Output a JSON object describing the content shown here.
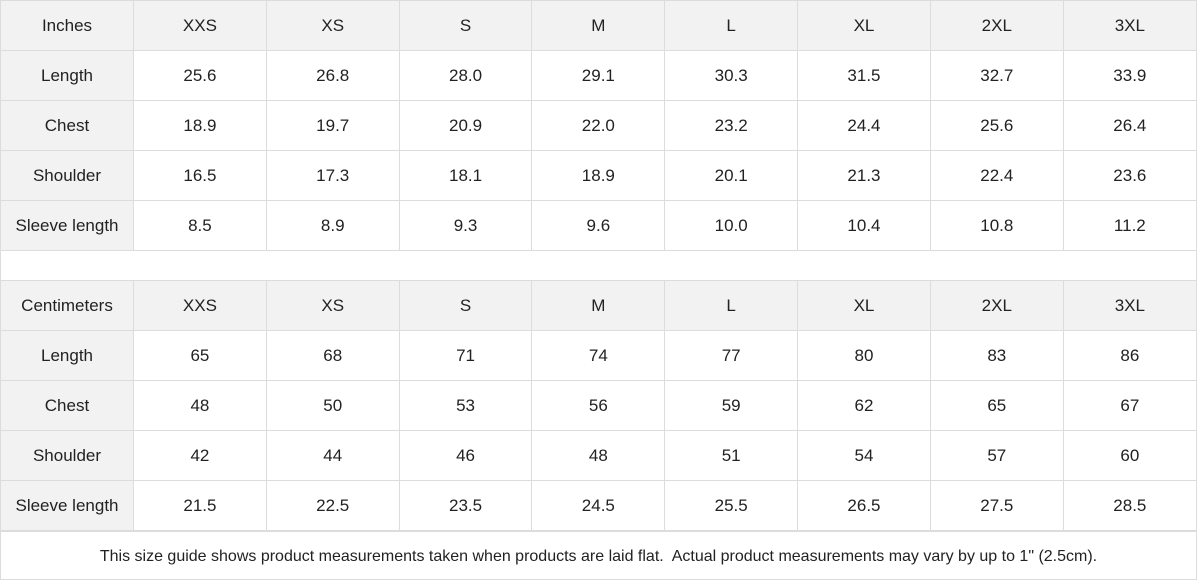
{
  "tables": [
    {
      "unit": "Inches",
      "sizes": [
        "XXS",
        "XS",
        "S",
        "M",
        "L",
        "XL",
        "2XL",
        "3XL"
      ],
      "rows": [
        {
          "label": "Length",
          "values": [
            "25.6",
            "26.8",
            "28.0",
            "29.1",
            "30.3",
            "31.5",
            "32.7",
            "33.9"
          ]
        },
        {
          "label": "Chest",
          "values": [
            "18.9",
            "19.7",
            "20.9",
            "22.0",
            "23.2",
            "24.4",
            "25.6",
            "26.4"
          ]
        },
        {
          "label": "Shoulder",
          "values": [
            "16.5",
            "17.3",
            "18.1",
            "18.9",
            "20.1",
            "21.3",
            "22.4",
            "23.6"
          ]
        },
        {
          "label": "Sleeve length",
          "values": [
            "8.5",
            "8.9",
            "9.3",
            "9.6",
            "10.0",
            "10.4",
            "10.8",
            "11.2"
          ]
        }
      ]
    },
    {
      "unit": "Centimeters",
      "sizes": [
        "XXS",
        "XS",
        "S",
        "M",
        "L",
        "XL",
        "2XL",
        "3XL"
      ],
      "rows": [
        {
          "label": "Length",
          "values": [
            "65",
            "68",
            "71",
            "74",
            "77",
            "80",
            "83",
            "86"
          ]
        },
        {
          "label": "Chest",
          "values": [
            "48",
            "50",
            "53",
            "56",
            "59",
            "62",
            "65",
            "67"
          ]
        },
        {
          "label": "Shoulder",
          "values": [
            "42",
            "44",
            "46",
            "48",
            "51",
            "54",
            "57",
            "60"
          ]
        },
        {
          "label": "Sleeve length",
          "values": [
            "21.5",
            "22.5",
            "23.5",
            "24.5",
            "25.5",
            "26.5",
            "27.5",
            "28.5"
          ]
        }
      ]
    }
  ],
  "note": "This size guide shows product measurements taken when products are laid flat.  Actual product measurements may vary by up to 1\" (2.5cm)."
}
